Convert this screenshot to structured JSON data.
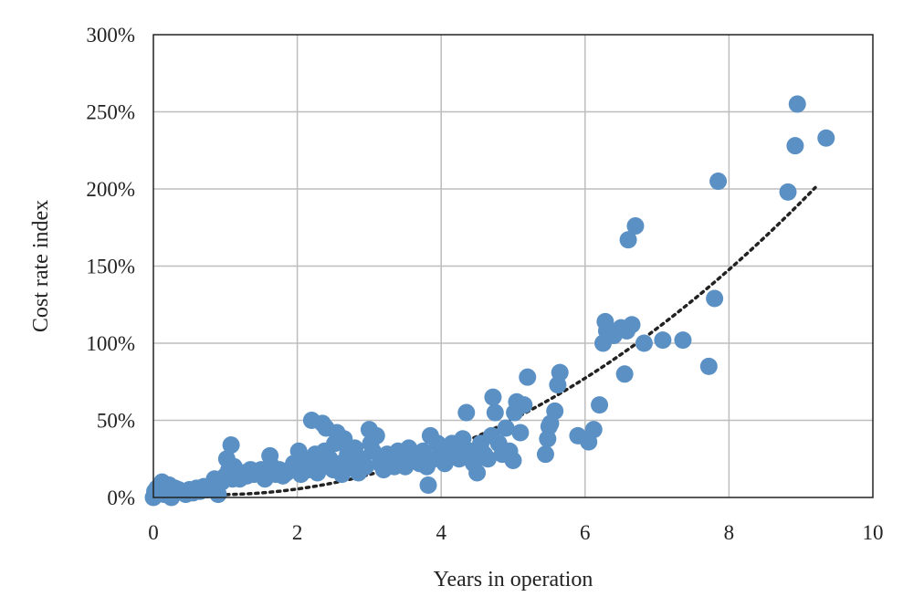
{
  "chart_data": {
    "type": "scatter",
    "xlabel": "Years in operation",
    "ylabel": "Cost rate index",
    "xlim": [
      0,
      10
    ],
    "ylim": [
      0,
      3
    ],
    "x_ticks": [
      0,
      2,
      4,
      6,
      8,
      10
    ],
    "y_ticks": [
      0,
      0.5,
      1,
      1.5,
      2,
      2.5,
      3
    ],
    "x_tick_labels": [
      "0",
      "2",
      "4",
      "6",
      "8",
      "10"
    ],
    "y_tick_labels": [
      "0%",
      "50%",
      "100%",
      "150%",
      "200%",
      "250%",
      "300%"
    ],
    "grid": true,
    "legend": "none",
    "colors": {
      "points": "#5b90c4",
      "trend": "#222222",
      "grid": "#bdbdbd",
      "axis": "#222222"
    },
    "series": [
      {
        "type": "scatter",
        "x": [
          0.0,
          0.02,
          0.05,
          0.1,
          0.12,
          0.15,
          0.2,
          0.22,
          0.25,
          0.3,
          0.35,
          0.4,
          0.45,
          0.5,
          0.55,
          0.6,
          0.65,
          0.7,
          0.75,
          0.8,
          0.85,
          0.9,
          0.95,
          1.0,
          1.02,
          1.05,
          1.08,
          1.1,
          1.12,
          1.15,
          1.2,
          1.25,
          1.3,
          1.35,
          1.4,
          1.45,
          1.5,
          1.55,
          1.6,
          1.62,
          1.65,
          1.7,
          1.75,
          1.8,
          1.85,
          1.9,
          1.95,
          2.0,
          2.02,
          2.05,
          2.1,
          2.15,
          2.18,
          2.2,
          2.25,
          2.28,
          2.3,
          2.35,
          2.38,
          2.4,
          2.45,
          2.5,
          2.52,
          2.55,
          2.6,
          2.62,
          2.65,
          2.7,
          2.75,
          2.8,
          2.85,
          2.9,
          2.95,
          3.0,
          3.02,
          3.05,
          3.1,
          3.15,
          3.2,
          3.25,
          3.3,
          3.35,
          3.4,
          3.45,
          3.5,
          3.55,
          3.6,
          3.65,
          3.7,
          3.75,
          3.8,
          3.82,
          3.85,
          3.9,
          3.95,
          4.0,
          4.05,
          4.1,
          4.15,
          4.2,
          4.25,
          4.3,
          4.35,
          4.4,
          4.45,
          4.5,
          4.55,
          4.6,
          4.65,
          4.7,
          4.72,
          4.75,
          4.8,
          4.85,
          4.9,
          4.95,
          5.0,
          5.02,
          5.05,
          5.1,
          5.15,
          5.2,
          5.45,
          5.48,
          5.5,
          5.52,
          5.58,
          5.62,
          5.65,
          5.9,
          6.05,
          6.12,
          6.2,
          6.25,
          6.28,
          6.3,
          6.4,
          6.5,
          6.55,
          6.58,
          6.6,
          6.65,
          6.7,
          6.82,
          7.08,
          7.36,
          7.72,
          7.8,
          7.85,
          8.82,
          8.92,
          8.95,
          9.35
        ],
        "y": [
          0.0,
          0.04,
          0.06,
          0.08,
          0.1,
          0.02,
          0.03,
          0.08,
          0.0,
          0.06,
          0.05,
          0.04,
          0.02,
          0.05,
          0.03,
          0.06,
          0.04,
          0.07,
          0.05,
          0.08,
          0.12,
          0.02,
          0.1,
          0.14,
          0.25,
          0.18,
          0.34,
          0.12,
          0.2,
          0.15,
          0.12,
          0.16,
          0.14,
          0.18,
          0.15,
          0.17,
          0.18,
          0.12,
          0.16,
          0.27,
          0.2,
          0.15,
          0.18,
          0.14,
          0.16,
          0.18,
          0.22,
          0.2,
          0.3,
          0.15,
          0.25,
          0.18,
          0.2,
          0.5,
          0.28,
          0.16,
          0.22,
          0.48,
          0.3,
          0.45,
          0.25,
          0.18,
          0.35,
          0.42,
          0.22,
          0.15,
          0.38,
          0.28,
          0.2,
          0.32,
          0.16,
          0.25,
          0.2,
          0.44,
          0.35,
          0.3,
          0.4,
          0.22,
          0.18,
          0.28,
          0.25,
          0.2,
          0.3,
          0.22,
          0.2,
          0.32,
          0.28,
          0.25,
          0.22,
          0.3,
          0.2,
          0.08,
          0.4,
          0.25,
          0.35,
          0.3,
          0.22,
          0.28,
          0.35,
          0.3,
          0.25,
          0.38,
          0.55,
          0.3,
          0.22,
          0.16,
          0.35,
          0.28,
          0.25,
          0.4,
          0.65,
          0.55,
          0.35,
          0.28,
          0.45,
          0.3,
          0.24,
          0.55,
          0.62,
          0.42,
          0.6,
          0.78,
          0.28,
          0.38,
          0.46,
          0.48,
          0.56,
          0.73,
          0.81,
          0.4,
          0.36,
          0.44,
          0.6,
          1.0,
          1.14,
          1.08,
          1.05,
          1.1,
          0.8,
          1.08,
          1.67,
          1.12,
          1.76,
          1.0,
          1.02,
          1.02,
          0.85,
          1.29,
          2.05,
          1.98,
          2.28,
          2.55,
          2.33
        ]
      },
      {
        "type": "polynomial-trend",
        "style": "dotted",
        "coefficients": [
          0.04,
          -0.05,
          0.0287
        ],
        "x_range": [
          0.0,
          9.2
        ]
      }
    ]
  }
}
